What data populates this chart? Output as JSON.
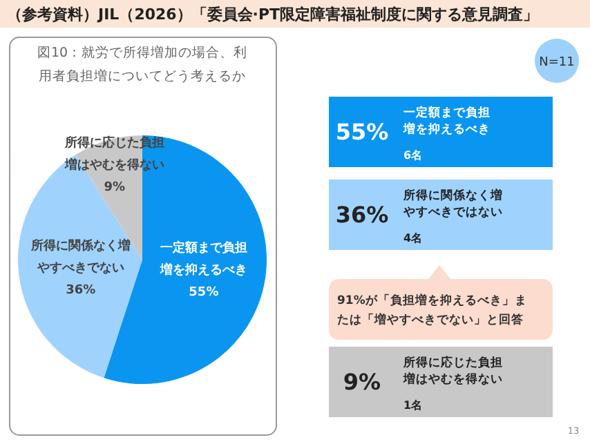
{
  "chart_data": [
    {
      "type": "pie",
      "title": "図10：就労で所得増加の場合、利用者負担増についてどう考えるか",
      "annotations": [
        "（参考資料）JIL（2026）「委員会·PT限定障害福祉制度に関する意見調査」",
        "N=11"
      ],
      "categories": [
        "一定額まで負担増を抑えるべき",
        "所得に関係なく増やすべきでない",
        "所得に応じた負担増はやむを得ない"
      ],
      "values": [
        55,
        36,
        9
      ],
      "colors": [
        "#0a96f0",
        "#9fd3fd",
        "#c8c8c8"
      ],
      "value_labels": [
        "55%",
        "36%",
        "9%"
      ]
    },
    {
      "type": "other",
      "annotations": [
        "55%",
        "一定額まで負担増を抑えるべき",
        "6名",
        "36%",
        "所得に関係なく増やすべきではない",
        "4名",
        "91%が「負担増を抑えるべき」または「増やすべきでない」と回答",
        "9%",
        "所得に応じた負担増はやむを得ない",
        "1名",
        "13"
      ],
      "colors": [
        "#0a96f0",
        "#9fd3fd",
        "#fcdccf",
        "#c8c8c8"
      ]
    }
  ]
}
